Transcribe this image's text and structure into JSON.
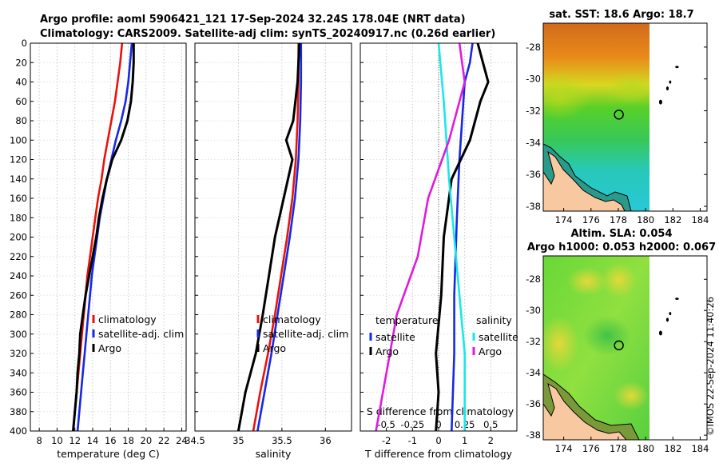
{
  "header": {
    "line1": "Argo profile: aoml 5906421_121 17-Sep-2024 32.24S 178.04E (NRT data)",
    "line2": "Climatology: CARS2009. Satellite-adj clim: synTS_20240917.nc (0.26d earlier)"
  },
  "colors": {
    "climatology": "#e8120c",
    "satellite": "#1428e6",
    "argo": "#000000",
    "sal_satellite": "#18e8e8",
    "sal_argo": "#e01adc"
  },
  "depth_ticks": [
    "0",
    "20",
    "40",
    "60",
    "80",
    "100",
    "120",
    "140",
    "160",
    "180",
    "200",
    "220",
    "240",
    "260",
    "280",
    "300",
    "320",
    "340",
    "360",
    "380",
    "400"
  ],
  "chart_data": [
    {
      "type": "line",
      "name": "temperature-profile",
      "xlabel": "temperature (deg C)",
      "ylabel": "depth",
      "xlim": [
        7,
        24.5
      ],
      "ylim": [
        400,
        0
      ],
      "xticks": [
        "8",
        "10",
        "12",
        "14",
        "16",
        "18",
        "20",
        "22",
        "24"
      ],
      "legend": [
        "climatology",
        "satellite-adj. clim",
        "Argo"
      ],
      "series": [
        {
          "name": "climatology",
          "color_key": "climatology",
          "points": [
            [
              17.3,
              0
            ],
            [
              17.1,
              20
            ],
            [
              16.8,
              40
            ],
            [
              16.5,
              60
            ],
            [
              16.1,
              80
            ],
            [
              15.7,
              100
            ],
            [
              15.3,
              120
            ],
            [
              15.0,
              140
            ],
            [
              14.6,
              160
            ],
            [
              14.3,
              180
            ],
            [
              14.0,
              200
            ],
            [
              13.7,
              220
            ],
            [
              13.4,
              240
            ],
            [
              13.2,
              260
            ],
            [
              13.0,
              280
            ],
            [
              12.8,
              300
            ],
            [
              12.6,
              320
            ],
            [
              12.4,
              340
            ],
            [
              12.2,
              360
            ],
            [
              12.0,
              380
            ],
            [
              11.8,
              400
            ]
          ]
        },
        {
          "name": "satellite-adj. clim",
          "color_key": "satellite",
          "points": [
            [
              18.4,
              0
            ],
            [
              18.2,
              20
            ],
            [
              18.0,
              40
            ],
            [
              17.7,
              60
            ],
            [
              17.2,
              80
            ],
            [
              16.6,
              100
            ],
            [
              16.1,
              120
            ],
            [
              15.6,
              140
            ],
            [
              15.2,
              160
            ],
            [
              14.8,
              180
            ],
            [
              14.5,
              200
            ],
            [
              14.2,
              220
            ],
            [
              13.9,
              240
            ],
            [
              13.7,
              260
            ],
            [
              13.5,
              280
            ],
            [
              13.3,
              300
            ],
            [
              13.1,
              320
            ],
            [
              12.9,
              340
            ],
            [
              12.7,
              360
            ],
            [
              12.5,
              380
            ],
            [
              12.3,
              400
            ]
          ]
        },
        {
          "name": "Argo",
          "color_key": "argo",
          "points": [
            [
              18.6,
              0
            ],
            [
              18.6,
              20
            ],
            [
              18.5,
              40
            ],
            [
              18.3,
              60
            ],
            [
              17.9,
              80
            ],
            [
              17.2,
              100
            ],
            [
              16.2,
              120
            ],
            [
              15.6,
              140
            ],
            [
              15.1,
              160
            ],
            [
              14.7,
              180
            ],
            [
              14.4,
              200
            ],
            [
              14.0,
              220
            ],
            [
              13.6,
              240
            ],
            [
              13.2,
              260
            ],
            [
              12.9,
              280
            ],
            [
              12.6,
              300
            ],
            [
              12.5,
              320
            ],
            [
              12.3,
              340
            ],
            [
              12.2,
              360
            ],
            [
              12.0,
              380
            ],
            [
              11.8,
              400
            ]
          ]
        }
      ]
    },
    {
      "type": "line",
      "name": "salinity-profile",
      "xlabel": "salinity",
      "ylabel": "depth",
      "xlim": [
        34.5,
        36.3
      ],
      "ylim": [
        400,
        0
      ],
      "xticks": [
        "34.5",
        "35",
        "35.5",
        "36"
      ],
      "legend": [
        "climatology",
        "satellite-adj. clim",
        "Argo"
      ],
      "series": [
        {
          "name": "climatology",
          "color_key": "climatology",
          "points": [
            [
              35.69,
              0
            ],
            [
              35.69,
              40
            ],
            [
              35.68,
              80
            ],
            [
              35.66,
              120
            ],
            [
              35.62,
              160
            ],
            [
              35.56,
              200
            ],
            [
              35.49,
              240
            ],
            [
              35.42,
              280
            ],
            [
              35.34,
              320
            ],
            [
              35.25,
              360
            ],
            [
              35.17,
              400
            ]
          ]
        },
        {
          "name": "satellite-adj. clim",
          "color_key": "satellite",
          "points": [
            [
              35.72,
              0
            ],
            [
              35.72,
              40
            ],
            [
              35.71,
              80
            ],
            [
              35.69,
              120
            ],
            [
              35.65,
              160
            ],
            [
              35.59,
              200
            ],
            [
              35.52,
              240
            ],
            [
              35.45,
              280
            ],
            [
              35.38,
              320
            ],
            [
              35.3,
              360
            ],
            [
              35.22,
              400
            ]
          ]
        },
        {
          "name": "Argo",
          "color_key": "argo",
          "points": [
            [
              35.7,
              0
            ],
            [
              35.68,
              40
            ],
            [
              35.63,
              80
            ],
            [
              35.55,
              100
            ],
            [
              35.62,
              120
            ],
            [
              35.52,
              160
            ],
            [
              35.42,
              200
            ],
            [
              35.35,
              240
            ],
            [
              35.28,
              280
            ],
            [
              35.2,
              320
            ],
            [
              35.08,
              360
            ],
            [
              35.0,
              400
            ]
          ]
        }
      ]
    },
    {
      "type": "line",
      "name": "difference-profile",
      "xlabel": "T difference from climatology",
      "xlabel2": "S difference from climatology",
      "ylabel": "depth",
      "xlim": [
        -3,
        3
      ],
      "ylim": [
        400,
        0
      ],
      "xticks": [
        "-2",
        "-1",
        "0",
        "1",
        "2"
      ],
      "xticks2": [
        "-0.5",
        "-0.25",
        "0",
        "0.25",
        "0.5"
      ],
      "legend_groups": [
        {
          "title": "temperature",
          "items": [
            "satellite",
            "Argo"
          ]
        },
        {
          "title": "salinity",
          "items": [
            "satellite",
            "Argo"
          ]
        }
      ],
      "series": [
        {
          "name": "temperature satellite",
          "color_key": "satellite",
          "points": [
            [
              1.3,
              0
            ],
            [
              1.2,
              20
            ],
            [
              1.0,
              40
            ],
            [
              0.9,
              80
            ],
            [
              0.8,
              120
            ],
            [
              0.7,
              180
            ],
            [
              0.6,
              260
            ],
            [
              0.6,
              320
            ],
            [
              0.5,
              400
            ]
          ]
        },
        {
          "name": "temperature Argo",
          "color_key": "argo",
          "points": [
            [
              1.5,
              0
            ],
            [
              1.7,
              20
            ],
            [
              1.9,
              40
            ],
            [
              1.6,
              60
            ],
            [
              1.2,
              100
            ],
            [
              0.5,
              140
            ],
            [
              0.2,
              200
            ],
            [
              0.1,
              260
            ],
            [
              -0.1,
              320
            ],
            [
              0.0,
              360
            ],
            [
              -0.1,
              400
            ]
          ]
        },
        {
          "name": "salinity satellite",
          "color_key": "sal_satellite",
          "points": [
            [
              0.0,
              0
            ],
            [
              0.05,
              60
            ],
            [
              0.1,
              140
            ],
            [
              0.2,
              260
            ],
            [
              0.25,
              320
            ],
            [
              0.25,
              400
            ]
          ]
        },
        {
          "name": "salinity Argo",
          "color_key": "sal_argo",
          "points": [
            [
              0.2,
              0
            ],
            [
              0.25,
              40
            ],
            [
              0.1,
              100
            ],
            [
              -0.1,
              160
            ],
            [
              -0.2,
              220
            ],
            [
              -0.4,
              280
            ],
            [
              -0.5,
              340
            ],
            [
              -0.6,
              400
            ]
          ]
        }
      ]
    },
    {
      "type": "heatmap",
      "name": "sst-map",
      "title": "sat. SST: 18.6 Argo: 18.7",
      "xticks": [
        "174",
        "176",
        "178",
        "180",
        "182",
        "184"
      ],
      "yticks": [
        "-28",
        "-30",
        "-32",
        "-34",
        "-36",
        "-38"
      ],
      "xlim": [
        172.5,
        184.5
      ],
      "ylim": [
        -38.3,
        -26.5
      ],
      "argo_position": [
        178.04,
        -32.24
      ]
    },
    {
      "type": "heatmap",
      "name": "sla-map",
      "title": "Altim. SLA: 0.054",
      "subtitle": "Argo h1000: 0.053 h2000: 0.067",
      "xticks": [
        "174",
        "176",
        "178",
        "180",
        "182",
        "184"
      ],
      "yticks": [
        "-28",
        "-30",
        "-32",
        "-34",
        "-36",
        "-38"
      ],
      "xlim": [
        172.5,
        184.5
      ],
      "ylim": [
        -38.3,
        -26.5
      ],
      "argo_position": [
        178.04,
        -32.24
      ]
    }
  ],
  "credit": "©IMOS 22-Sep-2024 11:40:26"
}
